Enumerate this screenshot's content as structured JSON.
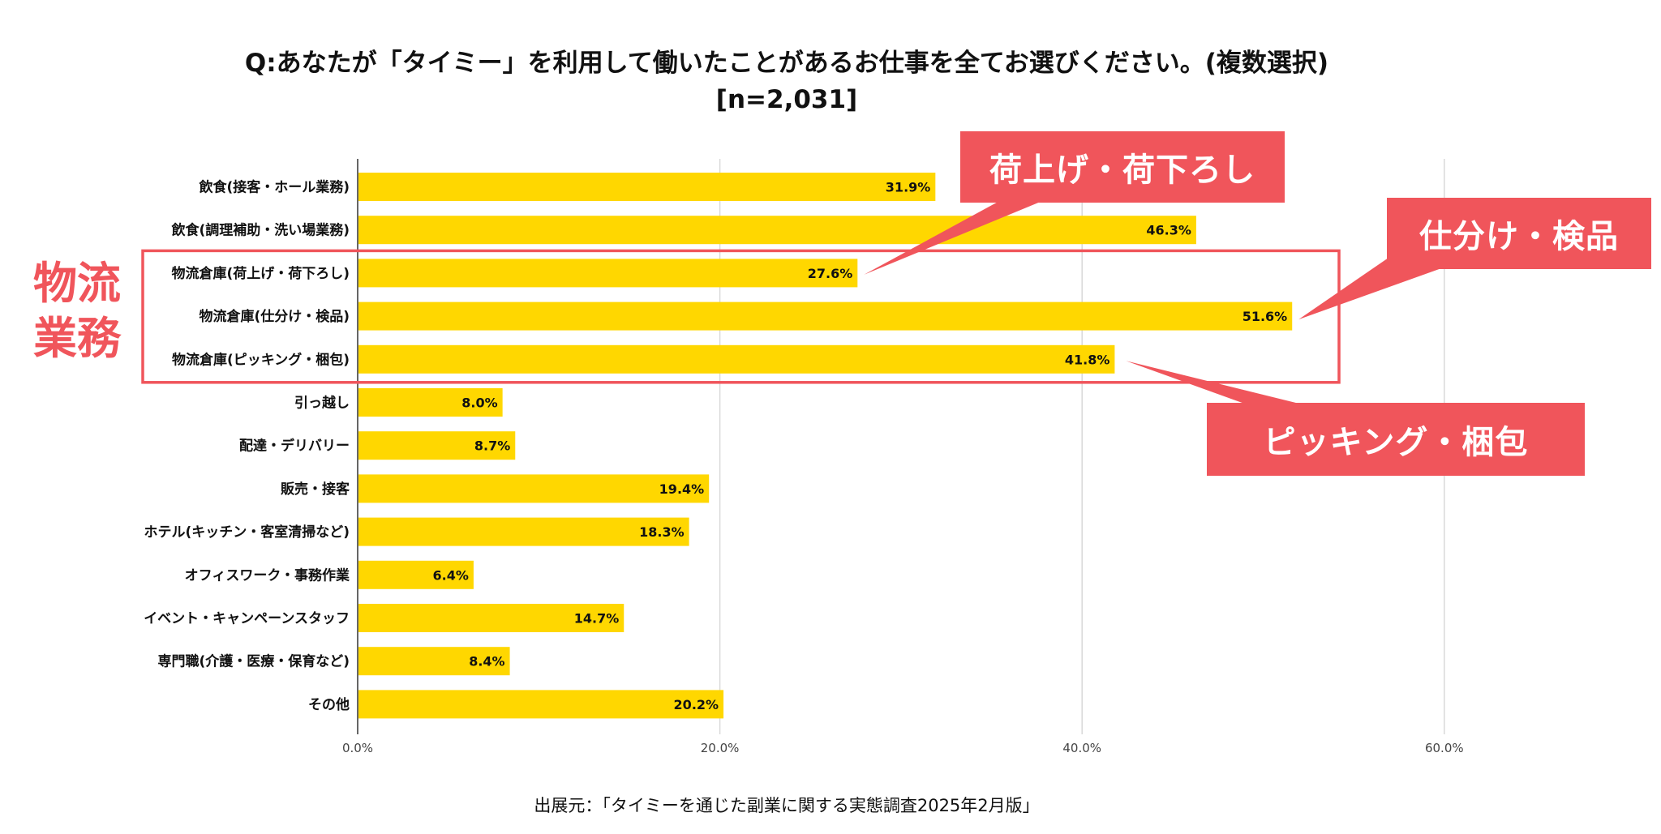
{
  "title": {
    "line1": "Q:あなたが「タイミー」を利用して働いたことがあるお仕事を全てお選びください。(複数選択)",
    "line2": "[n=2,031]"
  },
  "source": "出展元：「タイミーを通じた副業に関する実態調査2025年2月版」",
  "group_label": {
    "line1": "物流",
    "line2": "業務"
  },
  "callouts": {
    "nimotsu": "荷上げ・荷下ろし",
    "shiwake": "仕分け・検品",
    "picking": "ピッキング・梱包"
  },
  "colors": {
    "bar": "#FFD700",
    "accent": "#F0555B",
    "grid": "#D9D9D9"
  },
  "chart_data": {
    "type": "bar",
    "orientation": "horizontal",
    "categories": [
      "飲食(接客・ホール業務)",
      "飲食(調理補助・洗い場業務)",
      "物流倉庫(荷上げ・荷下ろし)",
      "物流倉庫(仕分け・検品)",
      "物流倉庫(ピッキング・梱包)",
      "引っ越し",
      "配達・デリバリー",
      "販売・接客",
      "ホテル(キッチン・客室清掃など)",
      "オフィスワーク・事務作業",
      "イベント・キャンペーンスタッフ",
      "専門職(介護・医療・保育など)",
      "その他"
    ],
    "values": [
      31.9,
      46.3,
      27.6,
      51.6,
      41.8,
      8.0,
      8.7,
      19.4,
      18.3,
      6.4,
      14.7,
      8.4,
      20.2
    ],
    "value_labels": [
      "31.9%",
      "46.3%",
      "27.6%",
      "51.6%",
      "41.8%",
      "8.0%",
      "8.7%",
      "19.4%",
      "18.3%",
      "6.4%",
      "14.7%",
      "8.4%",
      "20.2%"
    ],
    "xlim": [
      0,
      70
    ],
    "xticks": [
      0,
      20,
      40,
      60
    ],
    "xtick_labels": [
      "0.0%",
      "20.0%",
      "40.0%",
      "60.0%"
    ],
    "grid": true,
    "highlighted_categories": [
      2,
      3,
      4
    ]
  }
}
